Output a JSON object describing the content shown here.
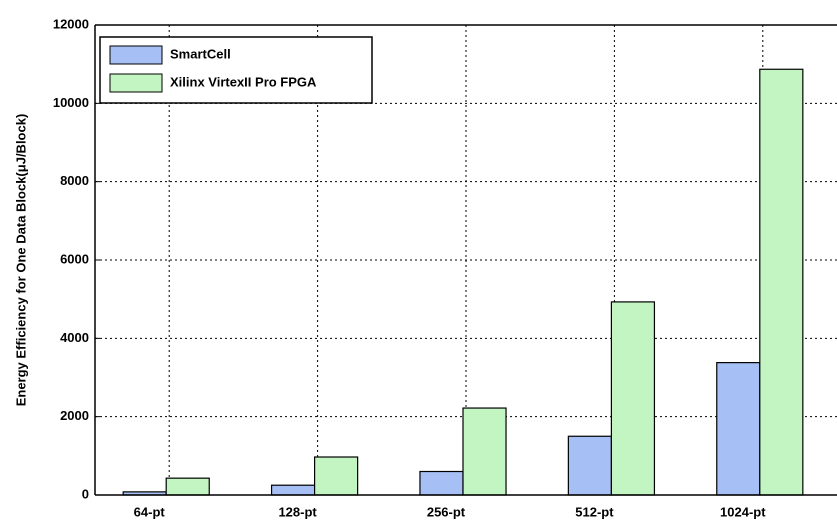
{
  "chart_data": {
    "type": "bar",
    "y_label": "Energy Efficiency for One Data Block(μJ/Block)",
    "categories": [
      "64-pt",
      "128-pt",
      "256-pt",
      "512-pt",
      "1024-pt"
    ],
    "series": [
      {
        "name": "SmartCell",
        "color": "#a6bff5",
        "values": [
          80,
          250,
          600,
          1500,
          3380
        ]
      },
      {
        "name": "Xilinx VirtexII Pro FPGA",
        "color": "#c2f5c2",
        "values": [
          430,
          970,
          2220,
          4930,
          10870
        ]
      }
    ],
    "ylim": [
      0,
      12000
    ],
    "yticks": [
      0,
      2000,
      4000,
      6000,
      8000,
      10000,
      12000
    ],
    "grid": true,
    "legend": "upper left"
  }
}
